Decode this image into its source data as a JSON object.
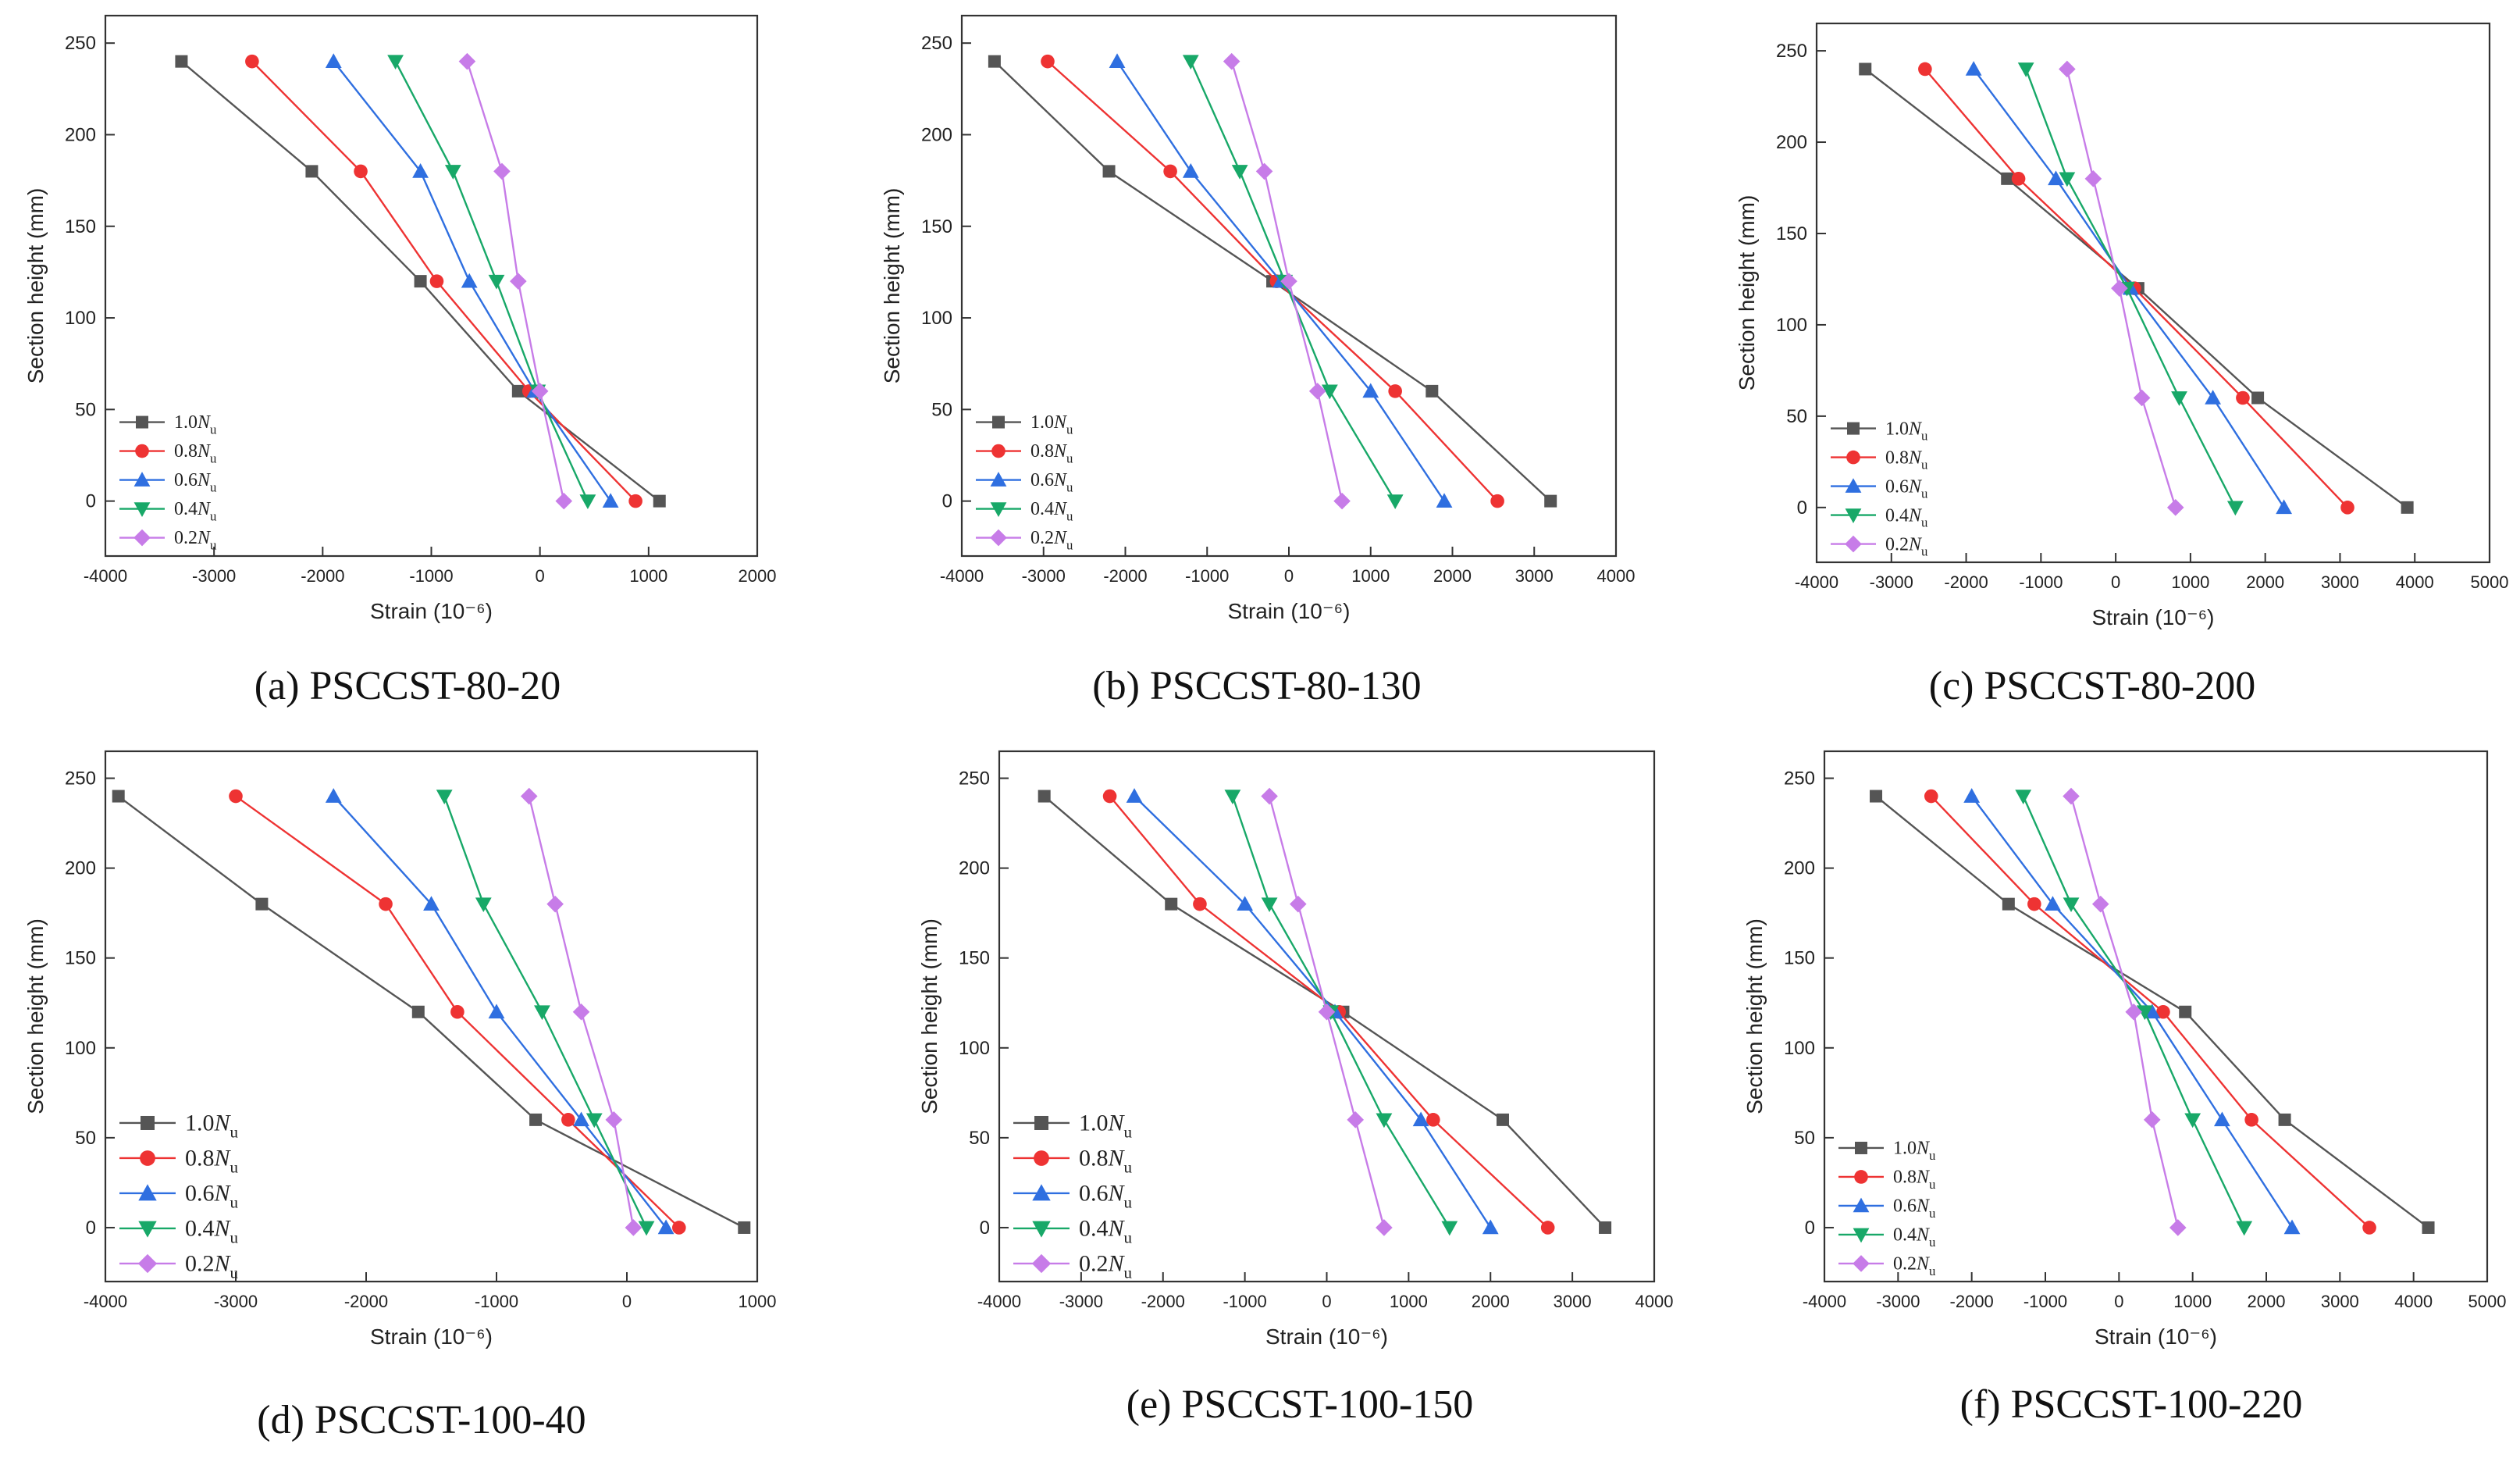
{
  "y_axis_label": "Section height (mm)",
  "x_axis_label": "Strain (10⁻⁶)",
  "series_styles": [
    {
      "name": "1.0N_u",
      "prefix": "1.0",
      "color": "#555555",
      "marker": "square"
    },
    {
      "name": "0.8N_u",
      "prefix": "0.8",
      "color": "#ee3333",
      "marker": "circle"
    },
    {
      "name": "0.6N_u",
      "prefix": "0.6",
      "color": "#2f6fe0",
      "marker": "triangle-up"
    },
    {
      "name": "0.4N_u",
      "prefix": "0.4",
      "color": "#18a868",
      "marker": "triangle-down"
    },
    {
      "name": "0.2N_u",
      "prefix": "0.2",
      "color": "#c77ce8",
      "marker": "diamond"
    }
  ],
  "chart_data": [
    {
      "type": "line",
      "title": "(a) PSCCST-80-20",
      "xlabel": "Strain (10⁻⁶)",
      "ylabel": "Section height (mm)",
      "xlim": [
        -4000,
        2000
      ],
      "xticks": [
        -4000,
        -3000,
        -2000,
        -1000,
        0,
        1000,
        2000
      ],
      "ylim": [
        -30,
        265
      ],
      "yticks": [
        0,
        50,
        100,
        150,
        200,
        250
      ],
      "y": [
        240,
        180,
        120,
        60,
        0
      ],
      "legend_position": "lower-left",
      "series": [
        {
          "name": "1.0N_u",
          "x": [
            -3300,
            -2100,
            -1100,
            -200,
            1100
          ]
        },
        {
          "name": "0.8N_u",
          "x": [
            -2650,
            -1650,
            -950,
            -100,
            880
          ]
        },
        {
          "name": "0.6N_u",
          "x": [
            -1900,
            -1100,
            -650,
            -50,
            650
          ]
        },
        {
          "name": "0.4N_u",
          "x": [
            -1330,
            -800,
            -400,
            -20,
            440
          ]
        },
        {
          "name": "0.2N_u",
          "x": [
            -670,
            -350,
            -200,
            0,
            220
          ]
        }
      ]
    },
    {
      "type": "line",
      "title": "(b) PSCCST-80-130",
      "xlabel": "Strain (10⁻⁶)",
      "ylabel": "Section height (mm)",
      "xlim": [
        -4000,
        4000
      ],
      "xticks": [
        -4000,
        -3000,
        -2000,
        -1000,
        0,
        1000,
        2000,
        3000,
        4000
      ],
      "ylim": [
        -30,
        265
      ],
      "yticks": [
        0,
        50,
        100,
        150,
        200,
        250
      ],
      "y": [
        240,
        180,
        120,
        60,
        0
      ],
      "legend_position": "lower-left",
      "series": [
        {
          "name": "1.0N_u",
          "x": [
            -3600,
            -2200,
            -200,
            1750,
            3200
          ]
        },
        {
          "name": "0.8N_u",
          "x": [
            -2950,
            -1450,
            -150,
            1300,
            2550
          ]
        },
        {
          "name": "0.6N_u",
          "x": [
            -2100,
            -1200,
            -100,
            1000,
            1900
          ]
        },
        {
          "name": "0.4N_u",
          "x": [
            -1200,
            -600,
            -50,
            500,
            1300
          ]
        },
        {
          "name": "0.2N_u",
          "x": [
            -700,
            -300,
            0,
            350,
            650
          ]
        }
      ]
    },
    {
      "type": "line",
      "title": "(c) PSCCST-80-200",
      "xlabel": "Strain (10⁻⁶)",
      "ylabel": "Section height (mm)",
      "xlim": [
        -4000,
        5000
      ],
      "xticks": [
        -4000,
        -3000,
        -2000,
        -1000,
        0,
        1000,
        2000,
        3000,
        4000,
        5000
      ],
      "ylim": [
        -30,
        265
      ],
      "yticks": [
        0,
        50,
        100,
        150,
        200,
        250
      ],
      "y": [
        240,
        180,
        120,
        60,
        0
      ],
      "legend_position": "lower-left",
      "series": [
        {
          "name": "1.0N_u",
          "x": [
            -3350,
            -1450,
            300,
            1900,
            3900
          ]
        },
        {
          "name": "0.8N_u",
          "x": [
            -2550,
            -1300,
            250,
            1700,
            3100
          ]
        },
        {
          "name": "0.6N_u",
          "x": [
            -1900,
            -800,
            200,
            1300,
            2250
          ]
        },
        {
          "name": "0.4N_u",
          "x": [
            -1200,
            -650,
            150,
            850,
            1600
          ]
        },
        {
          "name": "0.2N_u",
          "x": [
            -650,
            -300,
            50,
            350,
            800
          ]
        }
      ]
    },
    {
      "type": "line",
      "title": "(d) PSCCST-100-40",
      "xlabel": "Strain (10⁻⁶)",
      "ylabel": "Section height (mm)",
      "xlim": [
        -4000,
        1000
      ],
      "xticks": [
        -4000,
        -3000,
        -2000,
        -1000,
        0,
        1000
      ],
      "ylim": [
        -30,
        265
      ],
      "yticks": [
        0,
        50,
        100,
        150,
        200,
        250
      ],
      "y": [
        240,
        180,
        120,
        60,
        0
      ],
      "legend_position": "lower-left",
      "series": [
        {
          "name": "1.0N_u",
          "x": [
            -3900,
            -2800,
            -1600,
            -700,
            900
          ]
        },
        {
          "name": "0.8N_u",
          "x": [
            -3000,
            -1850,
            -1300,
            -450,
            400
          ]
        },
        {
          "name": "0.6N_u",
          "x": [
            -2250,
            -1500,
            -1000,
            -350,
            300
          ]
        },
        {
          "name": "0.4N_u",
          "x": [
            -1400,
            -1100,
            -650,
            -250,
            150
          ]
        },
        {
          "name": "0.2N_u",
          "x": [
            -750,
            -550,
            -350,
            -100,
            50
          ]
        }
      ]
    },
    {
      "type": "line",
      "title": "(e) PSCCST-100-150",
      "xlabel": "Strain (10⁻⁶)",
      "ylabel": "Section height (mm)",
      "xlim": [
        -4000,
        4000
      ],
      "xticks": [
        -4000,
        -3000,
        -2000,
        -1000,
        0,
        1000,
        2000,
        3000,
        4000
      ],
      "ylim": [
        -30,
        265
      ],
      "yticks": [
        0,
        50,
        100,
        150,
        200,
        250
      ],
      "y": [
        240,
        180,
        120,
        60,
        0
      ],
      "legend_position": "lower-left",
      "series": [
        {
          "name": "1.0N_u",
          "x": [
            -3450,
            -1900,
            200,
            2150,
            3400
          ]
        },
        {
          "name": "0.8N_u",
          "x": [
            -2650,
            -1550,
            150,
            1300,
            2700
          ]
        },
        {
          "name": "0.6N_u",
          "x": [
            -2350,
            -1000,
            100,
            1150,
            2000
          ]
        },
        {
          "name": "0.4N_u",
          "x": [
            -1150,
            -700,
            50,
            700,
            1500
          ]
        },
        {
          "name": "0.2N_u",
          "x": [
            -700,
            -350,
            0,
            350,
            700
          ]
        }
      ]
    },
    {
      "type": "line",
      "title": "(f) PSCCST-100-220",
      "xlabel": "Strain (10⁻⁶)",
      "ylabel": "Section height (mm)",
      "xlim": [
        -4000,
        5000
      ],
      "xticks": [
        -4000,
        -3000,
        -2000,
        -1000,
        0,
        1000,
        2000,
        3000,
        4000,
        5000
      ],
      "ylim": [
        -30,
        265
      ],
      "yticks": [
        0,
        50,
        100,
        150,
        200,
        250
      ],
      "y": [
        240,
        180,
        120,
        60,
        0
      ],
      "legend_position": "lower-left",
      "series": [
        {
          "name": "1.0N_u",
          "x": [
            -3300,
            -1500,
            900,
            2250,
            4200
          ]
        },
        {
          "name": "0.8N_u",
          "x": [
            -2550,
            -1150,
            600,
            1800,
            3400
          ]
        },
        {
          "name": "0.6N_u",
          "x": [
            -2000,
            -900,
            450,
            1400,
            2350
          ]
        },
        {
          "name": "0.4N_u",
          "x": [
            -1300,
            -650,
            350,
            1000,
            1700
          ]
        },
        {
          "name": "0.2N_u",
          "x": [
            -650,
            -250,
            200,
            450,
            800
          ]
        }
      ]
    }
  ]
}
